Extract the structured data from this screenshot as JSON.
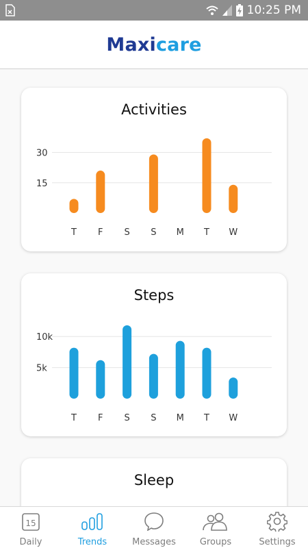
{
  "status_bar": {
    "time": "10:25 PM"
  },
  "app": {
    "logo_part1": "Maxi",
    "logo_part2": "care"
  },
  "cards": [
    {
      "title": "Activities",
      "chart_data": {
        "type": "bar",
        "categories": [
          "T",
          "F",
          "S",
          "S",
          "M",
          "T",
          "W"
        ],
        "values": [
          7,
          21,
          0,
          29,
          0,
          37,
          14
        ],
        "yticks": [
          15,
          30
        ],
        "ytick_labels": [
          "15",
          "30"
        ],
        "ylim": [
          0,
          40
        ],
        "color": "#f68b1f"
      }
    },
    {
      "title": "Steps",
      "chart_data": {
        "type": "bar",
        "categories": [
          "T",
          "F",
          "S",
          "S",
          "M",
          "T",
          "W"
        ],
        "values": [
          8200,
          6200,
          11800,
          7200,
          9300,
          8200,
          3400
        ],
        "yticks": [
          5000,
          10000
        ],
        "ytick_labels": [
          "5k",
          "10k"
        ],
        "ylim": [
          0,
          13000
        ],
        "color": "#1ea0dc"
      }
    },
    {
      "title": "Sleep"
    }
  ],
  "bottom_nav": {
    "items": [
      {
        "label": "Daily",
        "icon": "calendar-icon",
        "badge": "15"
      },
      {
        "label": "Trends",
        "icon": "bar-chart-icon"
      },
      {
        "label": "Messages",
        "icon": "chat-bubble-icon"
      },
      {
        "label": "Groups",
        "icon": "group-icon"
      },
      {
        "label": "Settings",
        "icon": "gear-icon"
      }
    ],
    "active_index": 1,
    "active_color": "#1e9ee0",
    "inactive_color": "#7d7d7d"
  }
}
